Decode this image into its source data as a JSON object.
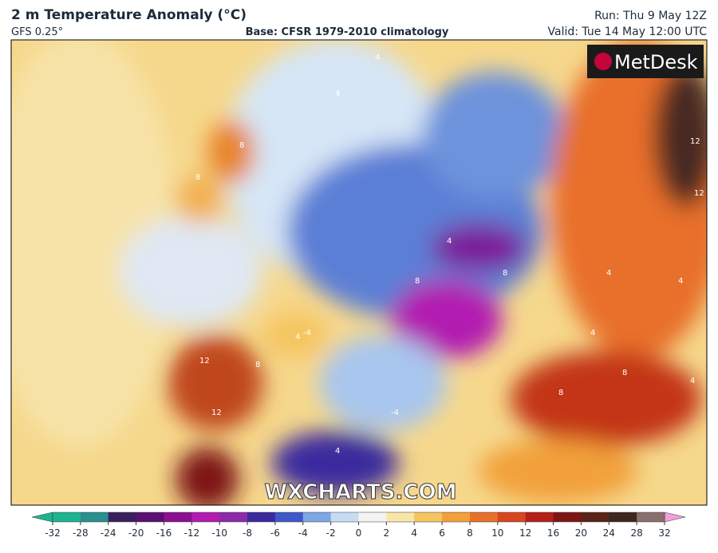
{
  "header": {
    "title": "2 m Temperature Anomaly (°C)",
    "model": "GFS 0.25°",
    "base": "Base: CFSR 1979-2010 climatology",
    "run": "Run: Thu 9 May 12Z",
    "valid": "Valid: Tue 14 May 12:00 UTC"
  },
  "map": {
    "logo": "MetDesk",
    "watermark": "WXCHARTS.COM",
    "contour_labels": [
      4,
      4,
      8,
      8,
      12,
      12,
      8,
      4,
      4,
      8,
      8,
      12,
      4,
      4,
      8,
      4,
      8,
      12,
      4,
      -4,
      -4,
      4
    ]
  },
  "colorbar": {
    "ticks": [
      -32,
      -28,
      -24,
      -20,
      -16,
      -12,
      -10,
      -8,
      -6,
      -4,
      -2,
      0,
      2,
      4,
      6,
      8,
      10,
      12,
      16,
      20,
      24,
      28,
      32
    ],
    "colors": [
      "#1db58f",
      "#2a8f8f",
      "#3a1f5e",
      "#5a1070",
      "#8a1090",
      "#b21cb0",
      "#8d2aa8",
      "#3b2a9e",
      "#3f57c7",
      "#7fa7e4",
      "#c6dcf3",
      "#f4f4f2",
      "#f7e6a8",
      "#f5c560",
      "#f2a03a",
      "#e8702a",
      "#d8461f",
      "#b52018",
      "#7e1614",
      "#5a2418",
      "#3e2620",
      "#8a6f6f"
    ]
  }
}
